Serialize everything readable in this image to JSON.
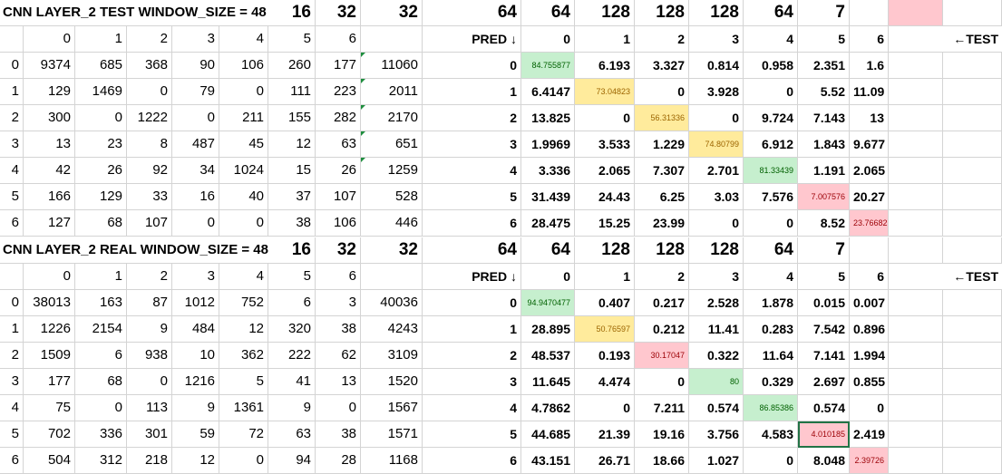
{
  "blocks": [
    {
      "title": "CNN LAYER_2 TEST WINDOW_SIZE = 48",
      "header_numbers": [
        "16",
        "32",
        "32",
        "64",
        "64",
        "128",
        "128",
        "128",
        "64",
        "7"
      ],
      "col_index_labels": [
        "0",
        "1",
        "2",
        "3",
        "4",
        "5",
        "6"
      ],
      "pred_label": "PRED ↓",
      "pct_col_labels": [
        "0",
        "1",
        "2",
        "3",
        "4",
        "5",
        "6"
      ],
      "axis_label": "←TEST",
      "rows": [
        {
          "label": "0",
          "counts": [
            "9374",
            "685",
            "368",
            "90",
            "106",
            "260",
            "177"
          ],
          "total": "11060",
          "pred": "0",
          "pct": [
            "84.755877",
            "6.193",
            "3.327",
            "0.814",
            "0.958",
            "2.351",
            "1.6"
          ]
        },
        {
          "label": "1",
          "counts": [
            "129",
            "1469",
            "0",
            "79",
            "0",
            "111",
            "223"
          ],
          "total": "2011",
          "pred": "1",
          "pct": [
            "6.4147",
            "73.04823",
            "0",
            "3.928",
            "0",
            "5.52",
            "11.09"
          ]
        },
        {
          "label": "2",
          "counts": [
            "300",
            "0",
            "1222",
            "0",
            "211",
            "155",
            "282"
          ],
          "total": "2170",
          "pred": "2",
          "pct": [
            "13.825",
            "0",
            "56.31336",
            "0",
            "9.724",
            "7.143",
            "13"
          ]
        },
        {
          "label": "3",
          "counts": [
            "13",
            "23",
            "8",
            "487",
            "45",
            "12",
            "63"
          ],
          "total": "651",
          "pred": "3",
          "pct": [
            "1.9969",
            "3.533",
            "1.229",
            "74.80799",
            "6.912",
            "1.843",
            "9.677"
          ]
        },
        {
          "label": "4",
          "counts": [
            "42",
            "26",
            "92",
            "34",
            "1024",
            "15",
            "26"
          ],
          "total": "1259",
          "pred": "4",
          "pct": [
            "3.336",
            "2.065",
            "7.307",
            "2.701",
            "81.33439",
            "1.191",
            "2.065"
          ]
        },
        {
          "label": "5",
          "counts": [
            "166",
            "129",
            "33",
            "16",
            "40",
            "37",
            "107"
          ],
          "total": "528",
          "pred": "5",
          "pct": [
            "31.439",
            "24.43",
            "6.25",
            "3.03",
            "7.576",
            "7.007576",
            "20.27"
          ]
        },
        {
          "label": "6",
          "counts": [
            "127",
            "68",
            "107",
            "0",
            "0",
            "38",
            "106"
          ],
          "total": "446",
          "pred": "6",
          "pct": [
            "28.475",
            "15.25",
            "23.99",
            "0",
            "0",
            "8.52",
            "23.76682"
          ]
        }
      ]
    },
    {
      "title": "CNN LAYER_2 REAL WINDOW_SIZE = 48",
      "header_numbers": [
        "16",
        "32",
        "32",
        "64",
        "64",
        "128",
        "128",
        "128",
        "64",
        "7"
      ],
      "col_index_labels": [
        "0",
        "1",
        "2",
        "3",
        "4",
        "5",
        "6"
      ],
      "pred_label": "PRED ↓",
      "pct_col_labels": [
        "0",
        "1",
        "2",
        "3",
        "4",
        "5",
        "6"
      ],
      "axis_label": "←TEST",
      "rows": [
        {
          "label": "0",
          "counts": [
            "38013",
            "163",
            "87",
            "1012",
            "752",
            "6",
            "3"
          ],
          "total": "40036",
          "pred": "0",
          "pct": [
            "94.9470477",
            "0.407",
            "0.217",
            "2.528",
            "1.878",
            "0.015",
            "0.007"
          ]
        },
        {
          "label": "1",
          "counts": [
            "1226",
            "2154",
            "9",
            "484",
            "12",
            "320",
            "38"
          ],
          "total": "4243",
          "pred": "1",
          "pct": [
            "28.895",
            "50.76597",
            "0.212",
            "11.41",
            "0.283",
            "7.542",
            "0.896"
          ]
        },
        {
          "label": "2",
          "counts": [
            "1509",
            "6",
            "938",
            "10",
            "362",
            "222",
            "62"
          ],
          "total": "3109",
          "pred": "2",
          "pct": [
            "48.537",
            "0.193",
            "30.17047",
            "0.322",
            "11.64",
            "7.141",
            "1.994"
          ]
        },
        {
          "label": "3",
          "counts": [
            "177",
            "68",
            "0",
            "1216",
            "5",
            "41",
            "13"
          ],
          "total": "1520",
          "pred": "3",
          "pct": [
            "11.645",
            "4.474",
            "0",
            "80",
            "0.329",
            "2.697",
            "0.855"
          ]
        },
        {
          "label": "4",
          "counts": [
            "75",
            "0",
            "113",
            "9",
            "1361",
            "9",
            "0"
          ],
          "total": "1567",
          "pred": "4",
          "pct": [
            "4.7862",
            "0",
            "7.211",
            "0.574",
            "86.85386",
            "0.574",
            "0"
          ]
        },
        {
          "label": "5",
          "counts": [
            "702",
            "336",
            "301",
            "59",
            "72",
            "63",
            "38"
          ],
          "total": "1571",
          "pred": "5",
          "pct": [
            "44.685",
            "21.39",
            "19.16",
            "3.756",
            "4.583",
            "4.010185",
            "2.419"
          ]
        },
        {
          "label": "6",
          "counts": [
            "504",
            "312",
            "218",
            "12",
            "0",
            "94",
            "28"
          ],
          "total": "1168",
          "pred": "6",
          "pct": [
            "43.151",
            "26.71",
            "18.66",
            "1.027",
            "0",
            "8.048",
            "2.39726"
          ]
        }
      ]
    }
  ],
  "colors": {
    "green_fill": "#c6efce",
    "yellow_fill": "#ffeb9c",
    "red_fill": "#ffc7ce",
    "selection": "#217346",
    "gridline": "#d4d4d4",
    "error_triangle": "#1e8e3e"
  }
}
